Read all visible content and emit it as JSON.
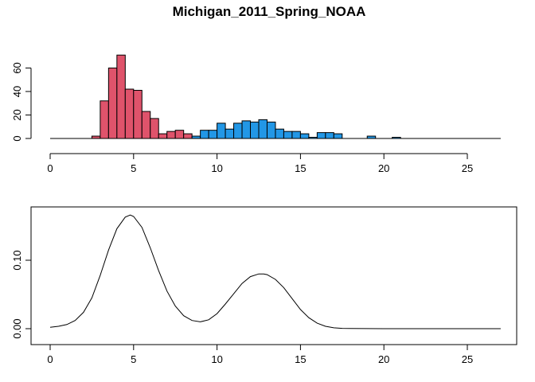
{
  "chart_data": [
    {
      "type": "histogram",
      "title": "Michigan_2011_Spring_NOAA",
      "xlabel": "",
      "ylabel": "",
      "xlim": [
        0,
        27
      ],
      "ylim": [
        0,
        70
      ],
      "xticks": [
        "0",
        "5",
        "10",
        "15",
        "20",
        "25"
      ],
      "yticks": [
        "0",
        "20",
        "40",
        "60"
      ],
      "bin_width": 0.5,
      "bin_start": 2.5,
      "counts": [
        2,
        32,
        60,
        71,
        42,
        41,
        23,
        17,
        4,
        6,
        7,
        4,
        2,
        7,
        7,
        13,
        8,
        13,
        15,
        14,
        16,
        14,
        8,
        6,
        6,
        4,
        1,
        5,
        5,
        4,
        0,
        0,
        0,
        2,
        0,
        0,
        1
      ],
      "split_x": 8.5,
      "colors": {
        "low": "#DF536B",
        "high": "#2297E6",
        "edge": "#000000"
      }
    },
    {
      "type": "line",
      "title": "",
      "xlabel": "",
      "ylabel": "",
      "xlim": [
        0,
        27
      ],
      "ylim": [
        0,
        0.165
      ],
      "xticks": [
        "0",
        "5",
        "10",
        "15",
        "20",
        "25"
      ],
      "yticks": [
        "0.00",
        "0.10"
      ],
      "x": [
        0,
        0.5,
        1,
        1.5,
        2,
        2.5,
        3,
        3.5,
        4,
        4.5,
        4.8,
        5,
        5.5,
        6,
        6.5,
        7,
        7.5,
        8,
        8.5,
        9,
        9.5,
        10,
        10.5,
        11,
        11.5,
        12,
        12.5,
        12.8,
        13,
        13.5,
        14,
        14.5,
        15,
        15.5,
        16,
        16.5,
        17,
        17.5,
        18,
        19,
        20,
        27
      ],
      "y": [
        0.002,
        0.0035,
        0.006,
        0.012,
        0.024,
        0.045,
        0.078,
        0.115,
        0.146,
        0.163,
        0.166,
        0.164,
        0.148,
        0.118,
        0.085,
        0.055,
        0.033,
        0.019,
        0.012,
        0.01,
        0.013,
        0.022,
        0.036,
        0.051,
        0.066,
        0.076,
        0.08,
        0.08,
        0.079,
        0.072,
        0.06,
        0.044,
        0.028,
        0.016,
        0.008,
        0.0035,
        0.0013,
        0.0005,
        0.0002,
        0.0001,
        5e-05,
        5e-05
      ],
      "color": "#000000"
    }
  ]
}
